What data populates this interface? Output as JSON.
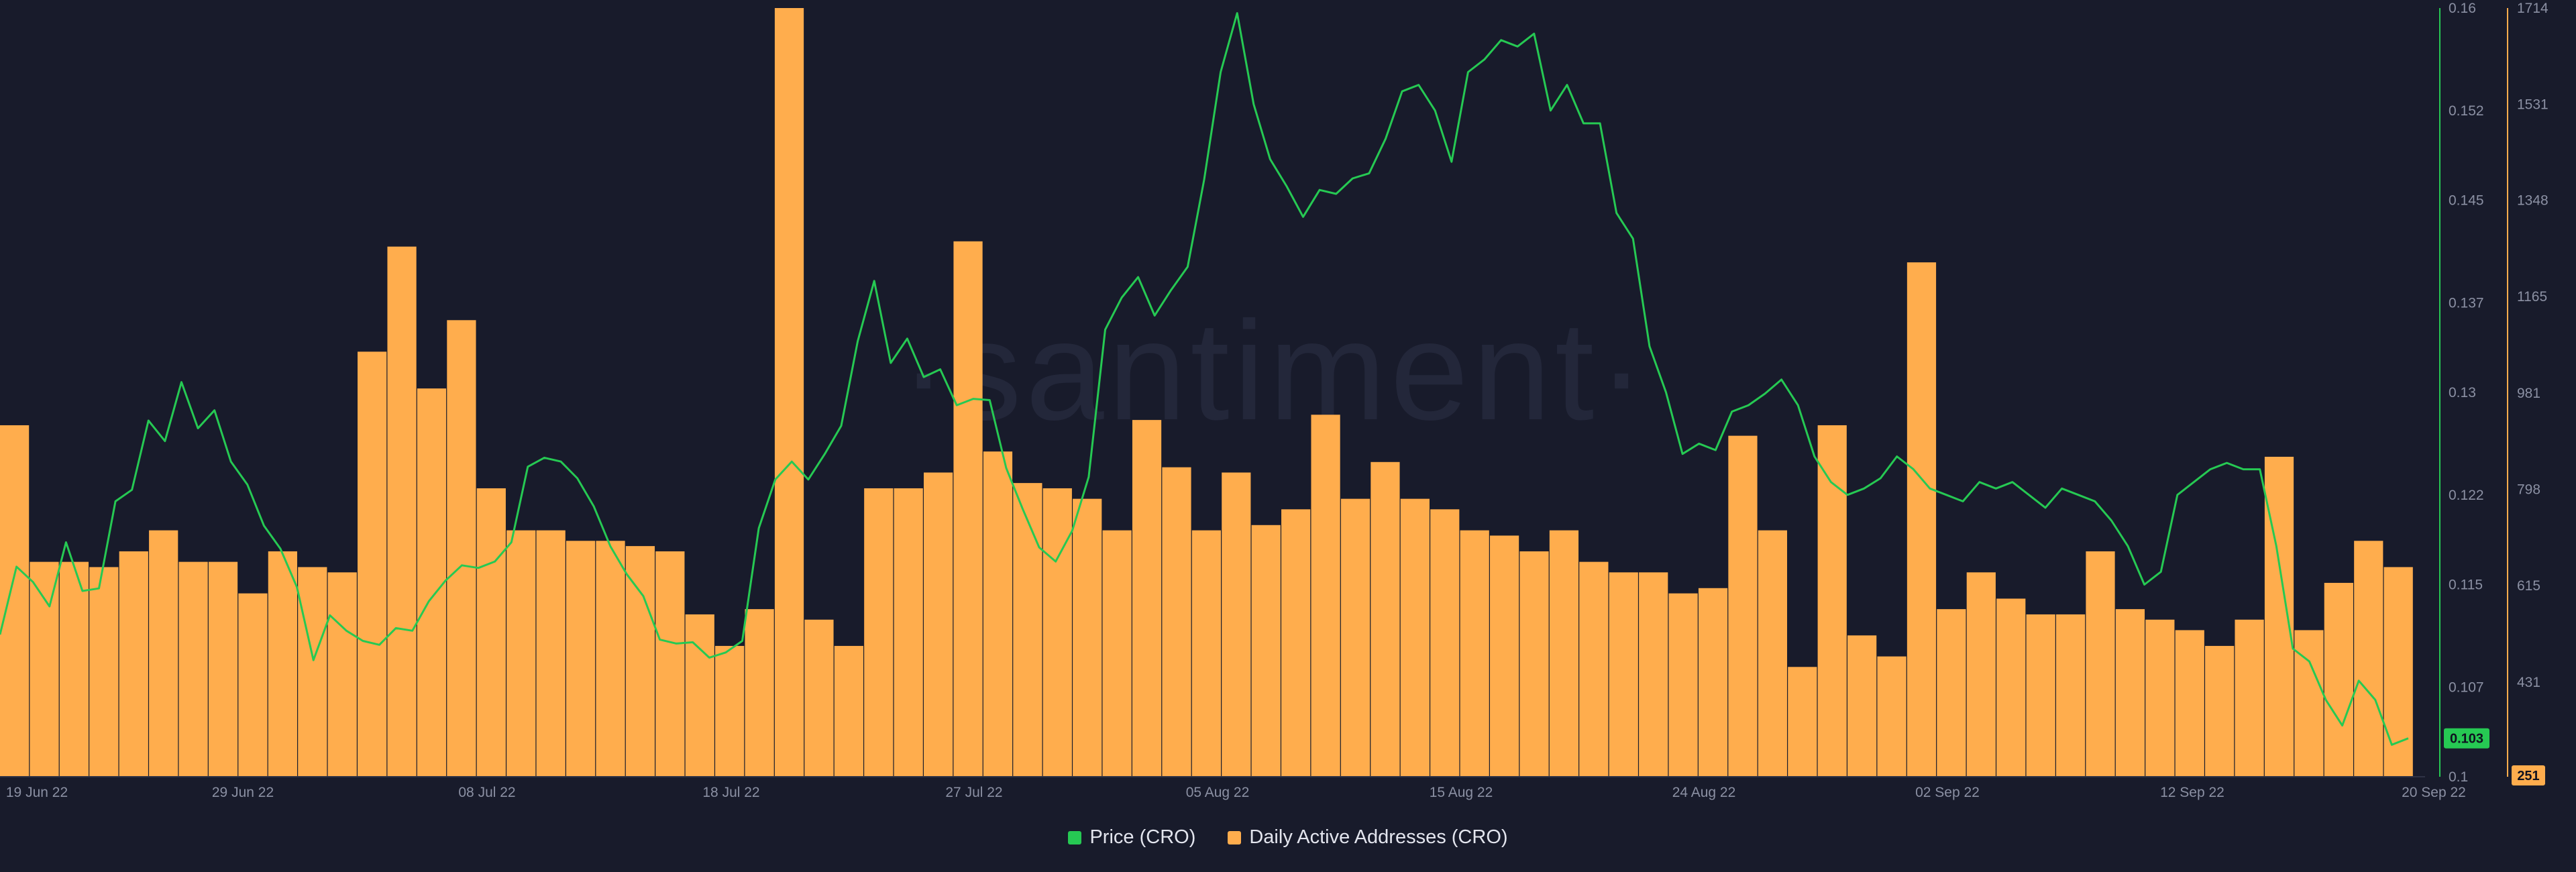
{
  "chart_data": {
    "type": "bar+line",
    "watermark": "·santiment·",
    "x_ticks": [
      "19 Jun 22",
      "29 Jun 22",
      "08 Jul 22",
      "18 Jul 22",
      "27 Jul 22",
      "05 Aug 22",
      "15 Aug 22",
      "24 Aug 22",
      "02 Sep 22",
      "12 Sep 22",
      "20 Sep 22"
    ],
    "price_axis": {
      "ticks": [
        "0.16",
        "0.152",
        "0.145",
        "0.137",
        "0.13",
        "0.122",
        "0.115",
        "0.107",
        "0.1"
      ],
      "range": [
        0.1,
        0.16
      ],
      "color": "#26c953"
    },
    "daa_axis": {
      "ticks": [
        "1714",
        "1531",
        "1348",
        "1165",
        "981",
        "798",
        "615",
        "431"
      ],
      "range": [
        251,
        1714
      ],
      "color": "#ffad4d"
    },
    "current_values": {
      "price": "0.103",
      "daa": "251"
    },
    "series": [
      {
        "name": "Price (CRO)",
        "kind": "line",
        "color": "#26c953",
        "values": [
          0.1111,
          0.1164,
          0.1152,
          0.1133,
          0.1183,
          0.1145,
          0.1147,
          0.1215,
          0.1224,
          0.1278,
          0.1262,
          0.1308,
          0.1272,
          0.1286,
          0.1246,
          0.1228,
          0.1196,
          0.1178,
          0.1148,
          0.1091,
          0.1126,
          0.1114,
          0.1106,
          0.1103,
          0.1116,
          0.1114,
          0.1137,
          0.1153,
          0.1165,
          0.1163,
          0.1168,
          0.1183,
          0.1242,
          0.1249,
          0.1246,
          0.1233,
          0.1211,
          0.118,
          0.1158,
          0.1141,
          0.1107,
          0.1104,
          0.1105,
          0.1093,
          0.1097,
          0.1106,
          0.1194,
          0.1232,
          0.1246,
          0.1232,
          0.1252,
          0.1274,
          0.134,
          0.1387,
          0.1323,
          0.1342,
          0.1312,
          0.1318,
          0.129,
          0.1295,
          0.1294,
          0.1241,
          0.1209,
          0.1179,
          0.1168,
          0.1192,
          0.1234,
          0.1349,
          0.1374,
          0.139,
          0.136,
          0.138,
          0.1398,
          0.1466,
          0.155,
          0.1596,
          0.1525,
          0.1482,
          0.1461,
          0.1437,
          0.1458,
          0.1455,
          0.1467,
          0.1471,
          0.1498,
          0.1535,
          0.154,
          0.152,
          0.148,
          0.155,
          0.156,
          0.1575,
          0.157,
          0.158,
          0.152,
          0.154,
          0.151,
          0.151,
          0.144,
          0.142,
          0.1336,
          0.13,
          0.1252,
          0.126,
          0.1255,
          0.1285,
          0.129,
          0.1299,
          0.131,
          0.129,
          0.125,
          0.123,
          0.122,
          0.1225,
          0.1233,
          0.125,
          0.124,
          0.1225,
          0.122,
          0.1215,
          0.123,
          0.1225,
          0.123,
          0.122,
          0.121,
          0.1225,
          0.122,
          0.1215,
          0.12,
          0.118,
          0.115,
          0.116,
          0.122,
          0.123,
          0.124,
          0.1245,
          0.124,
          0.124,
          0.118,
          0.11,
          0.109,
          0.106,
          0.104,
          0.1075,
          0.106,
          0.1025,
          0.103
        ]
      },
      {
        "name": "Daily Active Addresses (CRO)",
        "kind": "bar",
        "color": "#ffad4d",
        "values": [
          920,
          660,
          660,
          650,
          680,
          720,
          660,
          660,
          600,
          680,
          650,
          640,
          1060,
          1260,
          990,
          1120,
          800,
          720,
          720,
          700,
          700,
          690,
          680,
          560,
          500,
          570,
          1714,
          550,
          500,
          800,
          800,
          830,
          1270,
          870,
          810,
          800,
          780,
          720,
          930,
          840,
          720,
          830,
          730,
          760,
          940,
          780,
          850,
          780,
          760,
          720,
          710,
          680,
          720,
          660,
          640,
          640,
          600,
          610,
          900,
          720,
          460,
          920,
          520,
          480,
          1230,
          570,
          640,
          590,
          560,
          560,
          680,
          570,
          550,
          530,
          500,
          550,
          860,
          530,
          620,
          700,
          650
        ]
      }
    ]
  }
}
